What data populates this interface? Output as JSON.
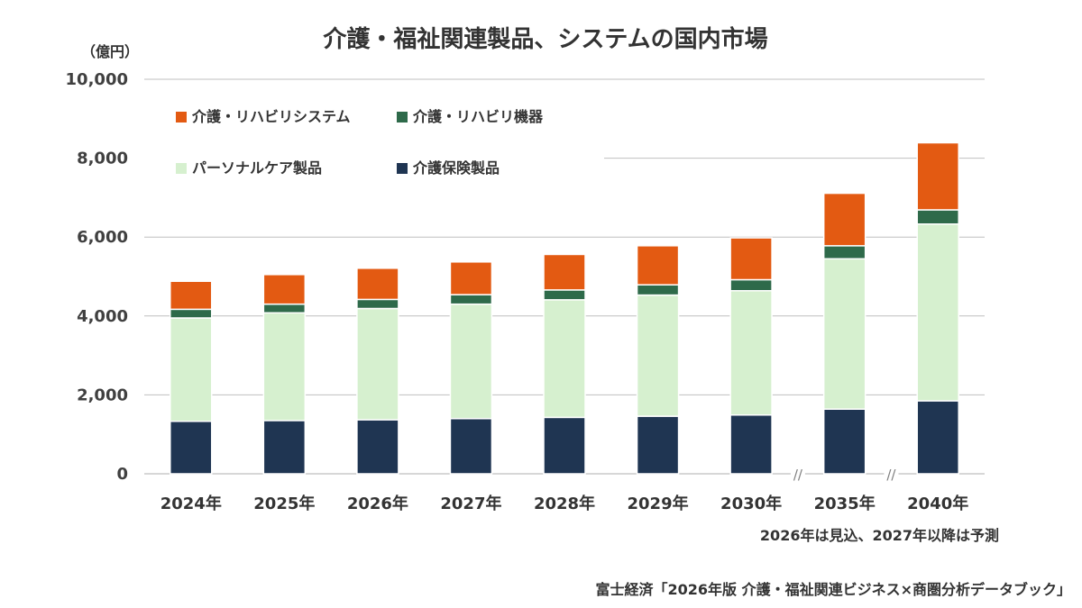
{
  "chart_data": {
    "type": "bar",
    "stacked": true,
    "title": "介護・福祉関連製品、システムの国内市場",
    "unit_label": "（億円）",
    "categories": [
      "2024年",
      "2025年",
      "2026年",
      "2027年",
      "2028年",
      "2029年",
      "2030年",
      "2035年",
      "2040年"
    ],
    "series": [
      {
        "name": "介護保険製品",
        "color": "#1f3552",
        "values": [
          1330,
          1350,
          1370,
          1400,
          1430,
          1460,
          1490,
          1640,
          1850
        ]
      },
      {
        "name": "パーソナルケア製品",
        "color": "#d6f0cf",
        "values": [
          2620,
          2730,
          2820,
          2900,
          2980,
          3070,
          3150,
          3810,
          4480
        ]
      },
      {
        "name": "介護・リハビリ機器",
        "color": "#2e6a4a",
        "values": [
          220,
          220,
          230,
          240,
          250,
          260,
          280,
          330,
          360
        ]
      },
      {
        "name": "介護・リハビリシステム",
        "color": "#e35a12",
        "values": [
          710,
          750,
          790,
          830,
          900,
          990,
          1060,
          1330,
          1700
        ]
      }
    ],
    "ylim": [
      0,
      10000
    ],
    "yticks": [
      0,
      2000,
      4000,
      6000,
      8000,
      10000
    ],
    "ytick_labels": [
      "0",
      "2,000",
      "4,000",
      "6,000",
      "8,000",
      "10,000"
    ],
    "axis_breaks": [
      "//",
      "//"
    ],
    "legend_position": "top-left",
    "grid": true,
    "annotation": "2026年は見込、2027年以降は予測",
    "source": "富士経済「2026年版 介護・福祉関連ビジネス×商圏分析データブック」"
  }
}
